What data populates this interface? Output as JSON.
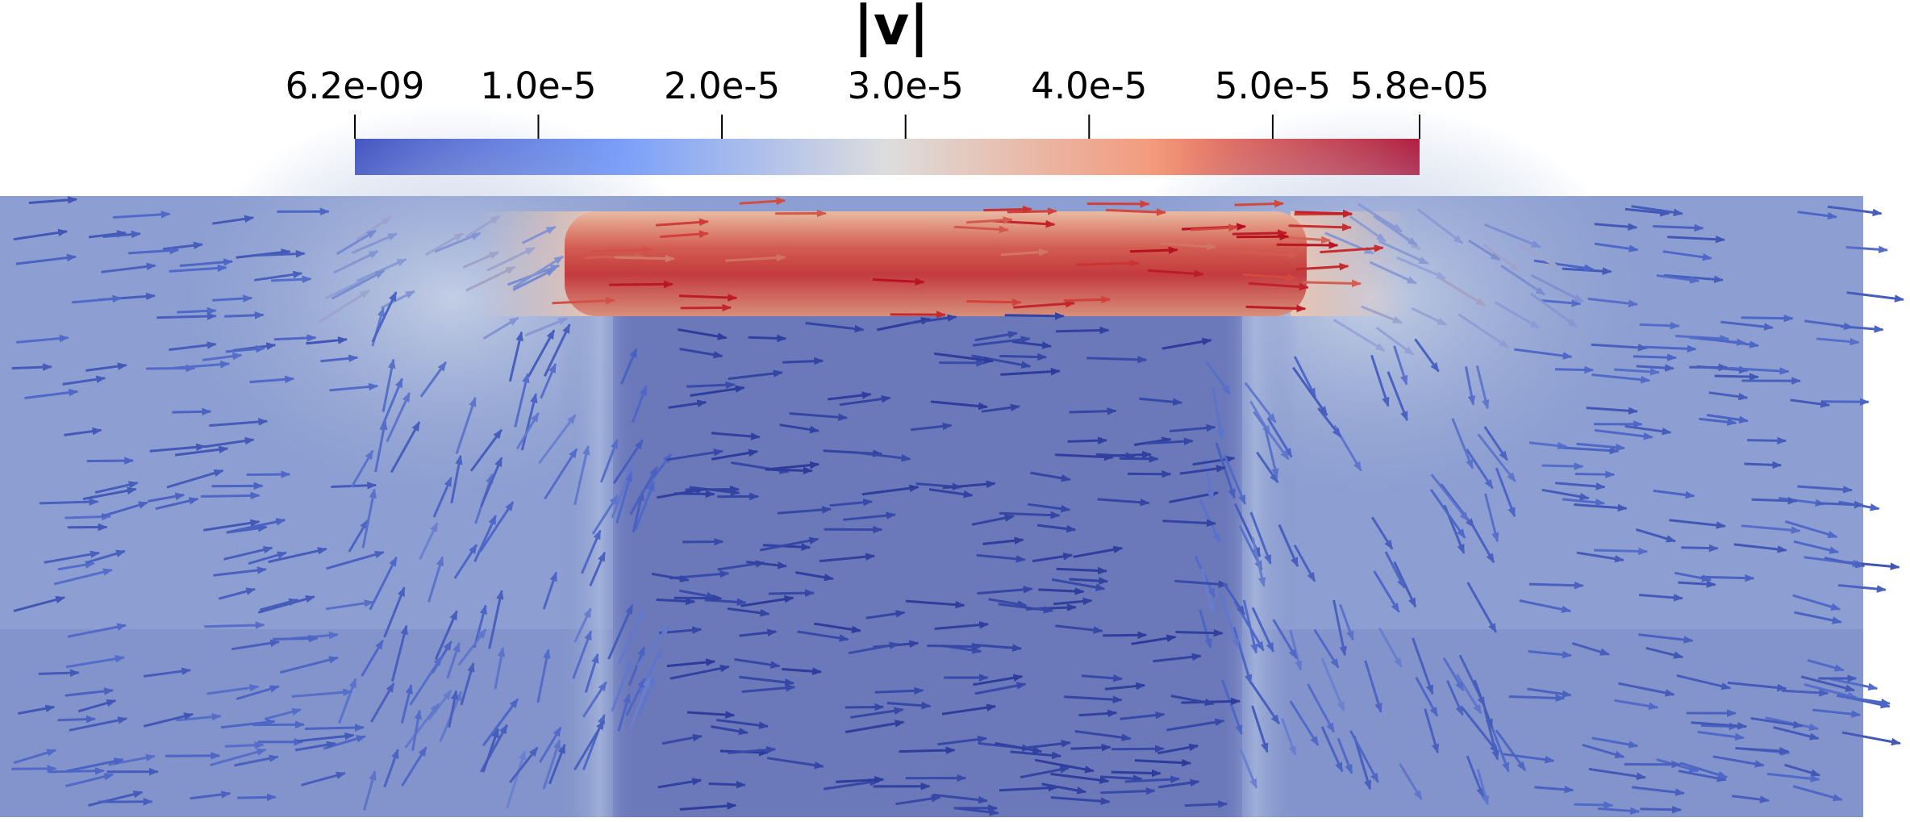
{
  "chart_data": {
    "type": "heatmap",
    "title": "|v|",
    "colorbar": {
      "min": 6.2e-09,
      "max": 5.8e-05,
      "colormap": "coolwarm",
      "ticks": [
        {
          "value": 6.2e-09,
          "label": "6.2e-09"
        },
        {
          "value": 1e-05,
          "label": "1.0e-5"
        },
        {
          "value": 2e-05,
          "label": "2.0e-5"
        },
        {
          "value": 3e-05,
          "label": "3.0e-5"
        },
        {
          "value": 4e-05,
          "label": "4.0e-5"
        },
        {
          "value": 5e-05,
          "label": "5.0e-5"
        },
        {
          "value": 5.8e-05,
          "label": "5.8e-05"
        }
      ]
    },
    "field": {
      "description_values": "velocity magnitude field with glyph arrows",
      "background_level": 5e-06,
      "channel_peak": 5.8e-05,
      "obstacle_level": 1e-06
    },
    "glyphs": "vector arrows colored by |v|"
  },
  "colors": {
    "low": "#3b4cc0",
    "mid": "#dddddd",
    "high": "#b40426",
    "arrow_dark": "#2a3896"
  }
}
